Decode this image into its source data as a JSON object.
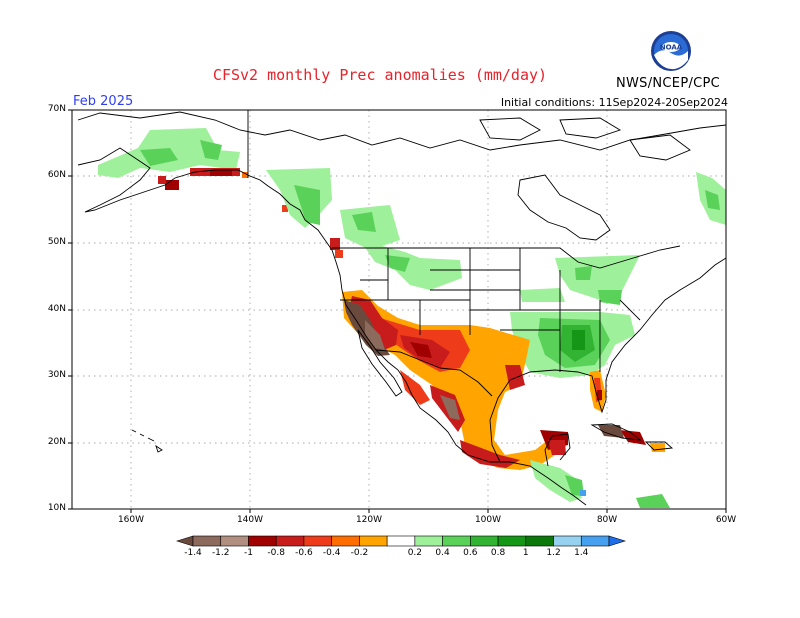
{
  "header": {
    "title": "CFSv2 monthly Prec anomalies (mm/day)",
    "period": "Feb 2025",
    "initial_conditions": "Initial conditions: 11Sep2024-20Sep2024",
    "org": "NWS/NCEP/CPC",
    "logo_text": "NOAA"
  },
  "map": {
    "lat_labels": [
      "70N",
      "60N",
      "50N",
      "40N",
      "30N",
      "20N",
      "10N"
    ],
    "lon_labels": [
      "160W",
      "140W",
      "120W",
      "100W",
      "80W",
      "60W"
    ],
    "grid": "dotted",
    "projection": "equirectangular",
    "extent": {
      "lon": [
        -170,
        -60
      ],
      "lat": [
        10,
        70
      ]
    }
  },
  "colorbar": {
    "labels": [
      "-1.4",
      "-1.2",
      "-1",
      "-0.8",
      "-0.6",
      "-0.4",
      "-0.2",
      "0.2",
      "0.4",
      "0.6",
      "0.8",
      "1",
      "1.2",
      "1.4"
    ],
    "colors": [
      "#6b4a3e",
      "#8c6a5c",
      "#b08e80",
      "#a00000",
      "#c81c1c",
      "#ee3c1a",
      "#ff6c00",
      "#ffa400",
      "#ffffff",
      "#9ef09a",
      "#5ad25a",
      "#32b432",
      "#169616",
      "#0c780c",
      "#96d2f0",
      "#46a0f0",
      "#1e6eeb"
    ]
  }
}
